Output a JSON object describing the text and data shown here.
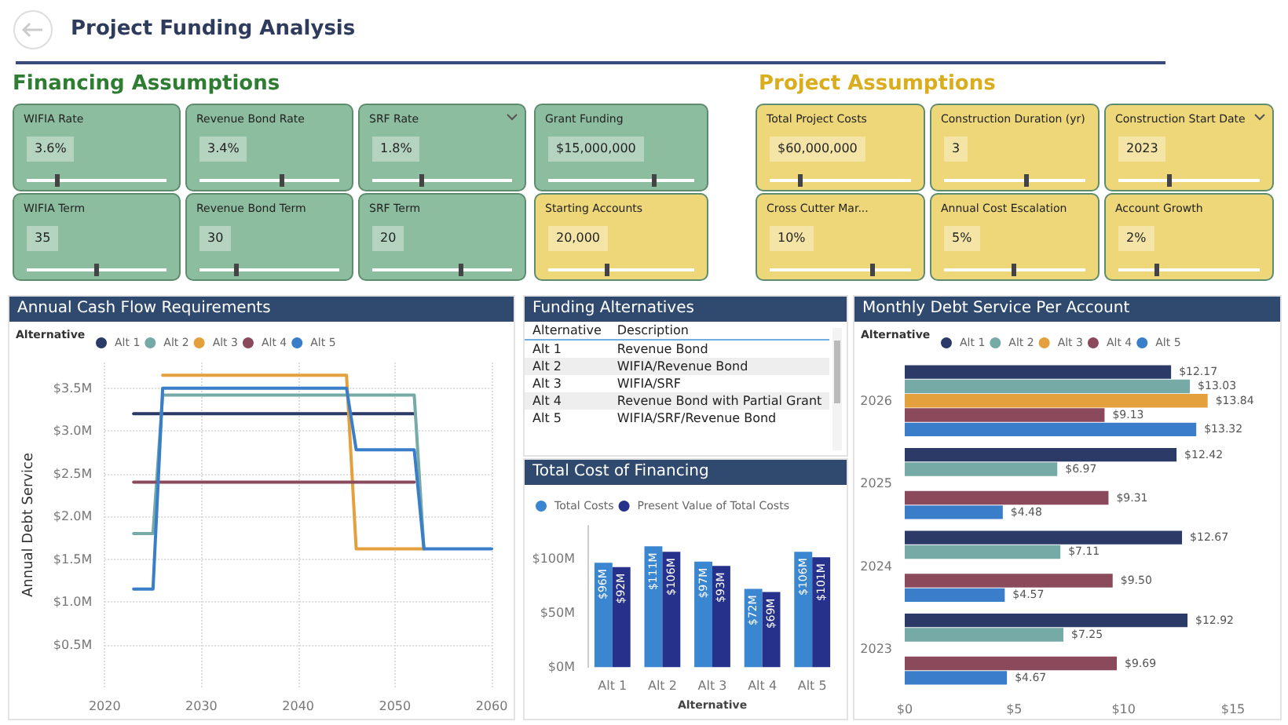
{
  "chart_data": [
    {
      "type": "other",
      "title": "Project Funding Analysis"
    },
    {
      "type": "other",
      "title": "Financing Assumptions",
      "annotations": [
        "WIFIA Rate",
        "3.6%",
        "Revenue Bond Rate",
        "3.4%",
        "SRF Rate",
        "1.8%",
        "Grant Funding",
        "$15,000,000",
        "WIFIA Term",
        "35",
        "Revenue Bond Term",
        "30",
        "SRF Term",
        "20",
        "Starting Accounts",
        "20,000"
      ]
    },
    {
      "type": "other",
      "title": "Project Assumptions",
      "annotations": [
        "Total Project Costs",
        "$60,000,000",
        "Construction Duration (yr)",
        "3",
        "Construction Start Date",
        "2023",
        "Cross Cutter Mar...",
        "10%",
        "Annual Cost Escalation",
        "5%",
        "Account Growth",
        "2%"
      ]
    },
    {
      "type": "line",
      "title": "Annual Cash Flow Requirements",
      "ylabel": "Annual Debt Service",
      "legend_title": "Alternative",
      "legend": "top left",
      "grid": true,
      "marker": "none",
      "line_style": "solid",
      "xlim": [
        2020,
        2060
      ],
      "xticks": [
        2020,
        2030,
        2040,
        2050,
        2060
      ],
      "ylim": [
        0,
        3.8
      ],
      "yticks": [
        {
          "value": 0.5,
          "label": "$0.5M"
        },
        {
          "value": 1,
          "label": "$1.0M"
        },
        {
          "value": 1.5,
          "label": "$1.5M"
        },
        {
          "value": 2,
          "label": "$2.0M"
        },
        {
          "value": 2.5,
          "label": "$2.5M"
        },
        {
          "value": 3,
          "label": "$3.0M"
        },
        {
          "value": 3.5,
          "label": "$3.5M"
        }
      ],
      "series": [
        {
          "name": "Alt 1",
          "color": "#2b3a67",
          "x": [
            2023,
            2052
          ],
          "values": [
            3.2,
            3.2
          ]
        },
        {
          "name": "Alt 2",
          "color": "#76aaa6",
          "x": [
            2023,
            2025,
            2026,
            2052,
            2053
          ],
          "values": [
            1.8,
            1.8,
            3.42,
            3.42,
            1.62
          ]
        },
        {
          "name": "Alt 3",
          "color": "#e3a03c",
          "x": [
            2026,
            2045,
            2046,
            2053
          ],
          "values": [
            3.65,
            3.65,
            1.62,
            1.62
          ]
        },
        {
          "name": "Alt 4",
          "color": "#8a4a5c",
          "x": [
            2023,
            2052
          ],
          "values": [
            2.4,
            2.4
          ]
        },
        {
          "name": "Alt 5",
          "color": "#3a7ec9",
          "x": [
            2023,
            2025,
            2026,
            2045,
            2046,
            2052,
            2053,
            2060
          ],
          "values": [
            1.15,
            1.15,
            3.5,
            3.5,
            2.78,
            2.78,
            1.62,
            1.62
          ]
        }
      ]
    },
    {
      "type": "other",
      "title": "Funding Alternatives",
      "annotations": [
        "Alternative",
        "Description",
        "Alt 1",
        "Revenue Bond",
        "Alt 2",
        "WIFIA/Revenue Bond",
        "Alt 3",
        "WIFIA/SRF",
        "Alt 4",
        "Revenue Bond with Partial Grant",
        "Alt 5",
        "WIFIA/SRF/Revenue Bond"
      ]
    },
    {
      "type": "bar",
      "title": "Total Cost of Financing",
      "xlabel": "Alternative",
      "legend": "top left",
      "categories": [
        "Alt 1",
        "Alt 2",
        "Alt 3",
        "Alt 4",
        "Alt 5"
      ],
      "ylim": [
        0,
        130
      ],
      "yticks": [
        {
          "value": 0,
          "label": "$0M"
        },
        {
          "value": 50,
          "label": "$50M"
        },
        {
          "value": 100,
          "label": "$100M"
        }
      ],
      "series": [
        {
          "name": "Total Costs",
          "color": "#3a86d0",
          "values": [
            96,
            111,
            97,
            72,
            106
          ],
          "value_labels": [
            "$96M",
            "$111M",
            "$97M",
            "$72M",
            "$106M"
          ]
        },
        {
          "name": "Present Value of Total Costs",
          "color": "#25318a",
          "values": [
            92,
            106,
            93,
            69,
            101
          ],
          "value_labels": [
            "$92M",
            "$106M",
            "$93M",
            "$69M",
            "$101M"
          ]
        }
      ]
    },
    {
      "type": "bar",
      "title": "Monthly Debt Service Per Account",
      "orientation": "horizontal",
      "legend_title": "Alternative",
      "legend": "top left",
      "categories": [
        "2026",
        "2025",
        "2024",
        "2023"
      ],
      "xlim": [
        0,
        15
      ],
      "xticks": [
        {
          "value": 0,
          "label": "$0"
        },
        {
          "value": 5,
          "label": "$5"
        },
        {
          "value": 10,
          "label": "$10"
        },
        {
          "value": 15,
          "label": "$15"
        }
      ],
      "series": [
        {
          "name": "Alt 1",
          "color": "#2b3a67",
          "values": [
            12.17,
            12.42,
            12.67,
            12.92
          ],
          "value_labels": [
            "$12.17",
            "$12.42",
            "$12.67",
            "$12.92"
          ]
        },
        {
          "name": "Alt 2",
          "color": "#76aaa6",
          "values": [
            13.03,
            6.97,
            7.11,
            7.25
          ],
          "value_labels": [
            "$13.03",
            "$6.97",
            "$7.11",
            "$7.25"
          ]
        },
        {
          "name": "Alt 3",
          "color": "#e3a03c",
          "values": [
            13.84,
            null,
            null,
            null
          ],
          "value_labels": [
            "$13.84",
            null,
            null,
            null
          ]
        },
        {
          "name": "Alt 4",
          "color": "#8a4a5c",
          "values": [
            9.13,
            9.31,
            9.5,
            9.69
          ],
          "value_labels": [
            "$9.13",
            "$9.31",
            "$9.50",
            "$9.69"
          ]
        },
        {
          "name": "Alt 5",
          "color": "#3a7ec9",
          "values": [
            13.32,
            4.48,
            4.57,
            4.67
          ],
          "value_labels": [
            "$13.32",
            "$4.48",
            "$4.57",
            "$4.67"
          ]
        }
      ]
    }
  ]
}
